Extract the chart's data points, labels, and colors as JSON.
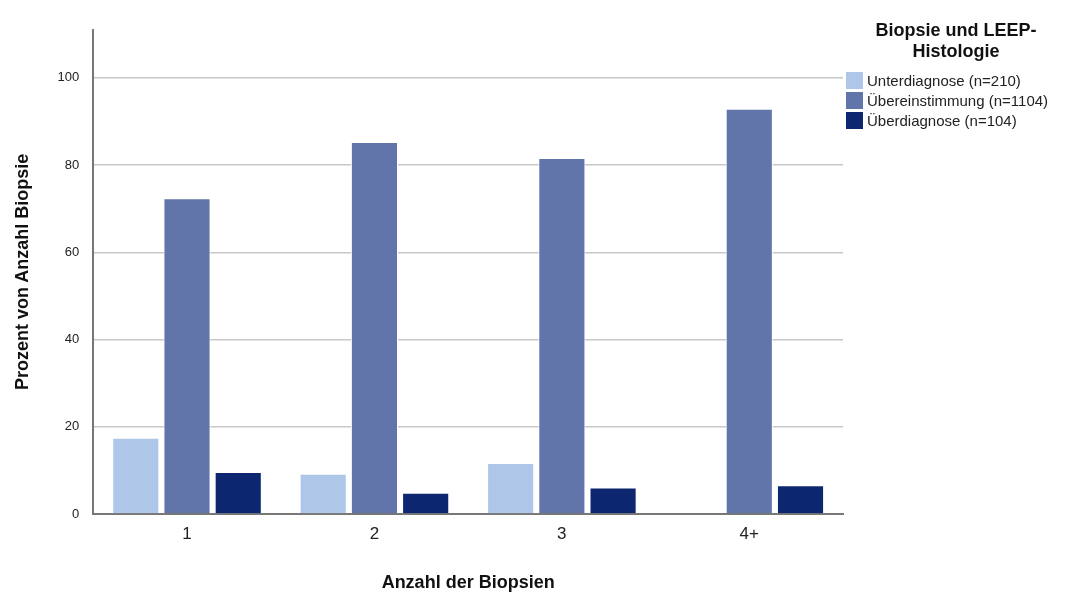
{
  "chart_data": {
    "type": "bar",
    "xlabel": "Anzahl der Biopsien",
    "ylabel": "Prozent von Anzahl Biopsie",
    "legend_title": "Biopsie und LEEP-Histologie",
    "categories": [
      "1",
      "2",
      "3",
      "4+"
    ],
    "series": [
      {
        "name": "Unterdiagnose (n=210)",
        "color": "#aec7e8",
        "values": [
          17.5,
          9.2,
          11.7,
          null
        ]
      },
      {
        "name": "Übereinstimmung (n=1104)",
        "color": "#6175aa",
        "values": [
          72.4,
          85.3,
          81.6,
          92.9
        ]
      },
      {
        "name": "Überdiagnose (n=104)",
        "color": "#0c2670",
        "values": [
          9.6,
          4.9,
          6.1,
          6.6
        ]
      }
    ],
    "ylim": [
      0,
      111
    ],
    "yticks": [
      0,
      20,
      40,
      60,
      80,
      100
    ],
    "grid": "y",
    "legend": "right"
  }
}
